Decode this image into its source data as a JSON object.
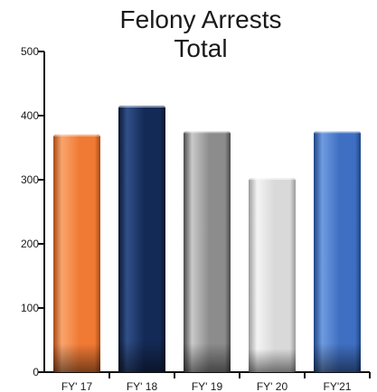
{
  "chart_data": {
    "type": "bar",
    "title_lines": [
      "Felony Arrests",
      "Total"
    ],
    "categories": [
      "FY' 17",
      "FY' 18",
      "FY' 19",
      "FY' 20",
      "FY'21"
    ],
    "values": [
      370,
      415,
      375,
      302,
      375
    ],
    "ylim": [
      0,
      500
    ],
    "yticks": [
      0,
      100,
      200,
      300,
      400,
      500
    ],
    "xlabel": "",
    "ylabel": "",
    "grid": false,
    "legend": "none",
    "bar_colors": [
      {
        "light": "#f9a56e",
        "mid": "#f07a34",
        "dark": "#a84a14"
      },
      {
        "light": "#31508a",
        "mid": "#142a56",
        "dark": "#0a1630"
      },
      {
        "light": "#c9c9c9",
        "mid": "#8c8c8c",
        "dark": "#4a4a4a"
      },
      {
        "light": "#f4f4f4",
        "mid": "#d9d9d9",
        "dark": "#9c9c9c"
      },
      {
        "light": "#6f9be0",
        "mid": "#3f6fc2",
        "dark": "#1f4586"
      }
    ],
    "axis_color": "#111111"
  }
}
